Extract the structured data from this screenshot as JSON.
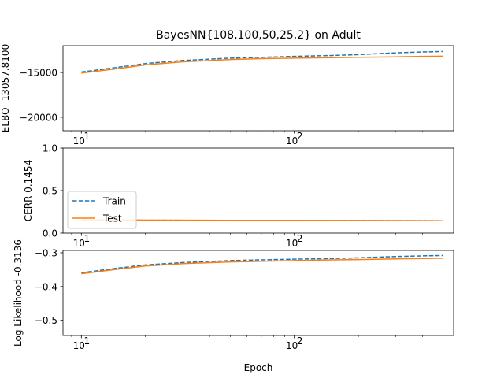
{
  "chart_data": {
    "type": "line",
    "title": "BayesNN{108,100,50,25,2} on Adult",
    "xlabel": "Epoch",
    "xscale": "log",
    "xlim": [
      8.2,
      560
    ],
    "xticks": [
      {
        "value": 10,
        "label": "10",
        "exp": "1"
      },
      {
        "value": 100,
        "label": "10",
        "exp": "2"
      }
    ],
    "legend": {
      "placement": "center-left",
      "panel": 1,
      "entries": [
        {
          "name": "Train",
          "style": "dashed",
          "color": "#1f77b4"
        },
        {
          "name": "Test",
          "style": "solid",
          "color": "#ff7f0e"
        }
      ]
    },
    "panels": [
      {
        "ylabel": "ELBO -13057.8100",
        "ylim": [
          -21500,
          -12000
        ],
        "yticks": [
          -15000,
          -20000
        ],
        "ytick_labels": [
          "−15000",
          "−20000"
        ],
        "series": [
          {
            "name": "Train",
            "color": "#1f77b4",
            "style": "dashed",
            "x": [
              10,
              15,
              20,
              30,
              50,
              70,
              100,
              150,
              200,
              300,
              400,
              500
            ],
            "y": [
              -14950,
              -14400,
              -14000,
              -13650,
              -13400,
              -13300,
              -13200,
              -13100,
              -13000,
              -12800,
              -12700,
              -12650
            ]
          },
          {
            "name": "Test",
            "color": "#ff7f0e",
            "style": "solid",
            "x": [
              10,
              15,
              20,
              30,
              50,
              70,
              100,
              150,
              200,
              300,
              400,
              500
            ],
            "y": [
              -15050,
              -14550,
              -14150,
              -13800,
              -13550,
              -13450,
              -13400,
              -13350,
              -13300,
              -13250,
              -13200,
              -13180
            ]
          }
        ]
      },
      {
        "ylabel": "CERR 0.1454",
        "ylim": [
          0,
          1
        ],
        "yticks": [
          0,
          0.5,
          1.0
        ],
        "ytick_labels": [
          "0.0",
          "0.5",
          "1.0"
        ],
        "series": [
          {
            "name": "Train",
            "color": "#1f77b4",
            "style": "dashed",
            "x": [
              10,
              20,
              50,
              100,
              200,
              300,
              500
            ],
            "y": [
              0.155,
              0.152,
              0.15,
              0.149,
              0.148,
              0.147,
              0.146
            ]
          },
          {
            "name": "Test",
            "color": "#ff7f0e",
            "style": "solid",
            "x": [
              10,
              20,
              50,
              100,
              200,
              300,
              500
            ],
            "y": [
              0.155,
              0.153,
              0.151,
              0.15,
              0.149,
              0.148,
              0.146
            ]
          }
        ]
      },
      {
        "ylabel": "Log Likelihood -0.3136",
        "ylim": [
          -0.545,
          -0.293
        ],
        "yticks": [
          -0.3,
          -0.4,
          -0.5
        ],
        "ytick_labels": [
          "−0.3",
          "−0.4",
          "−0.5"
        ],
        "series": [
          {
            "name": "Train",
            "color": "#1f77b4",
            "style": "dashed",
            "x": [
              10,
              15,
              20,
              30,
              50,
              70,
              100,
              150,
              200,
              300,
              400,
              500
            ],
            "y": [
              -0.359,
              -0.345,
              -0.336,
              -0.329,
              -0.323,
              -0.321,
              -0.319,
              -0.317,
              -0.315,
              -0.311,
              -0.309,
              -0.308
            ]
          },
          {
            "name": "Test",
            "color": "#ff7f0e",
            "style": "solid",
            "x": [
              10,
              15,
              20,
              30,
              50,
              70,
              100,
              150,
              200,
              300,
              400,
              500
            ],
            "y": [
              -0.362,
              -0.348,
              -0.339,
              -0.332,
              -0.327,
              -0.325,
              -0.323,
              -0.321,
              -0.32,
              -0.318,
              -0.317,
              -0.316
            ]
          }
        ]
      }
    ]
  }
}
